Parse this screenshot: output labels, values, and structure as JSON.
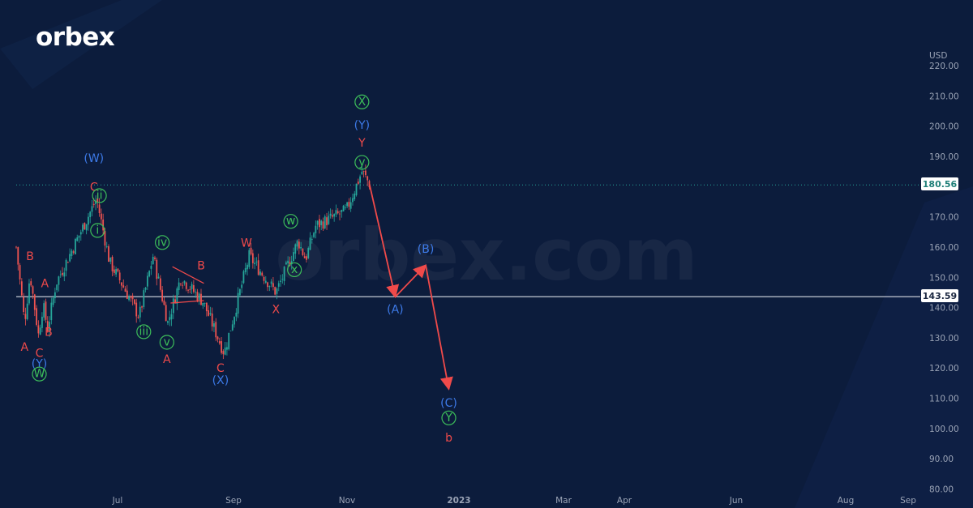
{
  "brand": {
    "logo": "orbex",
    "watermark": "orbex.com"
  },
  "colors": {
    "background": "#0c1c3c",
    "candle_up": "#26a69a",
    "candle_down": "#ef5350",
    "red_wave": "#f04a4a",
    "blue_wave": "#3d7ae8",
    "green_wave": "#3dbf5a",
    "level_line": "#d8dce4",
    "axis_text": "#9aa3b5"
  },
  "chart_data": {
    "type": "candlestick",
    "currency": "USD",
    "ylim": [
      80,
      220
    ],
    "y_ticks": [
      220,
      210,
      200,
      190,
      180,
      170,
      160,
      150,
      140,
      130,
      120,
      110,
      100,
      90,
      80
    ],
    "x_labels": [
      "Jul",
      "Sep",
      "Nov",
      "2023",
      "Mar",
      "Apr",
      "Jun",
      "Aug",
      "Sep"
    ],
    "price_path": [
      {
        "date": "2022-05-23",
        "value": 160
      },
      {
        "date": "2022-06-01",
        "value": 135
      },
      {
        "date": "2022-06-07",
        "value": 151
      },
      {
        "date": "2022-06-16",
        "value": 131
      },
      {
        "date": "2022-06-21",
        "value": 141
      },
      {
        "date": "2022-06-26",
        "value": 133
      },
      {
        "date": "2022-07-05",
        "value": 148
      },
      {
        "date": "2022-08-18",
        "value": 176
      },
      {
        "date": "2022-09-01",
        "value": 155
      },
      {
        "date": "2022-09-14",
        "value": 148
      },
      {
        "date": "2022-10-03",
        "value": 137
      },
      {
        "date": "2022-10-18",
        "value": 157
      },
      {
        "date": "2022-11-03",
        "value": 135
      },
      {
        "date": "2022-11-17",
        "value": 150
      },
      {
        "date": "2022-12-11",
        "value": 142
      },
      {
        "date": "2023-01-03",
        "value": 125
      },
      {
        "date": "2023-01-30",
        "value": 157
      },
      {
        "date": "2023-02-28",
        "value": 145
      },
      {
        "date": "2023-03-24",
        "value": 162
      },
      {
        "date": "2023-04-01",
        "value": 156
      },
      {
        "date": "2023-04-12",
        "value": 167
      },
      {
        "date": "2023-05-15",
        "value": 172
      },
      {
        "date": "2023-06-01",
        "value": 185
      },
      {
        "date": "2023-06-09",
        "value": 181
      }
    ],
    "current_price": {
      "value": 180.56,
      "label": "180.56"
    },
    "level": {
      "value": 143.59,
      "label": "143.59"
    },
    "forecast_path": [
      {
        "date": "2023-06-09",
        "value": 181
      },
      {
        "date": "2023-07-07",
        "value": 143.5
      },
      {
        "date": "2023-08-09",
        "value": 154
      },
      {
        "date": "2023-09-03",
        "value": 113
      }
    ],
    "wave_labels": [
      {
        "text": "A",
        "date": "2022-06-01",
        "value": 127,
        "color": "red"
      },
      {
        "text": "B",
        "date": "2022-06-07",
        "value": 157,
        "color": "red"
      },
      {
        "text": "C",
        "date": "2022-06-17",
        "value": 125,
        "color": "red"
      },
      {
        "text": "(Y)",
        "date": "2022-06-17",
        "value": 121.5,
        "color": "blue"
      },
      {
        "text": "W",
        "date": "2022-06-17",
        "value": 118,
        "color": "green",
        "circled": true
      },
      {
        "text": "A",
        "date": "2022-06-23",
        "value": 148,
        "color": "red"
      },
      {
        "text": "B",
        "date": "2022-06-27",
        "value": 132,
        "color": "red"
      },
      {
        "text": "(W)",
        "date": "2022-08-15",
        "value": 189.5,
        "color": "blue"
      },
      {
        "text": "C",
        "date": "2022-08-15",
        "value": 180,
        "color": "red"
      },
      {
        "text": "ii",
        "date": "2022-08-21",
        "value": 177,
        "color": "green",
        "circled": true
      },
      {
        "text": "i",
        "date": "2022-08-19",
        "value": 165.5,
        "color": "green",
        "circled": true
      },
      {
        "text": "iii",
        "date": "2022-10-08",
        "value": 132,
        "color": "green",
        "circled": true
      },
      {
        "text": "iv",
        "date": "2022-10-28",
        "value": 161.5,
        "color": "green",
        "circled": true
      },
      {
        "text": "v",
        "date": "2022-11-02",
        "value": 128.5,
        "color": "green",
        "circled": true
      },
      {
        "text": "A",
        "date": "2022-11-02",
        "value": 123,
        "color": "red"
      },
      {
        "text": "B",
        "date": "2022-12-09",
        "value": 154,
        "color": "red"
      },
      {
        "text": "C",
        "date": "2022-12-30",
        "value": 120,
        "color": "red"
      },
      {
        "text": "(X)",
        "date": "2022-12-30",
        "value": 116,
        "color": "blue"
      },
      {
        "text": "W",
        "date": "2023-01-27",
        "value": 161.5,
        "color": "red"
      },
      {
        "text": "X",
        "date": "2023-02-28",
        "value": 139.5,
        "color": "red"
      },
      {
        "text": "w",
        "date": "2023-03-16",
        "value": 168.5,
        "color": "green",
        "circled": true
      },
      {
        "text": "x",
        "date": "2023-03-20",
        "value": 152.5,
        "color": "green",
        "circled": true
      },
      {
        "text": "X",
        "date": "2023-06-01",
        "value": 208,
        "color": "green",
        "circled": true
      },
      {
        "text": "(Y)",
        "date": "2023-06-01",
        "value": 200.5,
        "color": "blue"
      },
      {
        "text": "Y",
        "date": "2023-06-01",
        "value": 194.5,
        "color": "red"
      },
      {
        "text": "y",
        "date": "2023-06-01",
        "value": 188,
        "color": "green",
        "circled": true
      },
      {
        "text": "(A)",
        "date": "2023-07-07",
        "value": 139.5,
        "color": "blue"
      },
      {
        "text": "(B)",
        "date": "2023-08-09",
        "value": 159.5,
        "color": "blue"
      },
      {
        "text": "(C)",
        "date": "2023-09-03",
        "value": 108.5,
        "color": "blue"
      },
      {
        "text": "Y",
        "date": "2023-09-03",
        "value": 103.5,
        "color": "green",
        "circled": true
      },
      {
        "text": "b",
        "date": "2023-09-03",
        "value": 97,
        "color": "red"
      }
    ]
  }
}
